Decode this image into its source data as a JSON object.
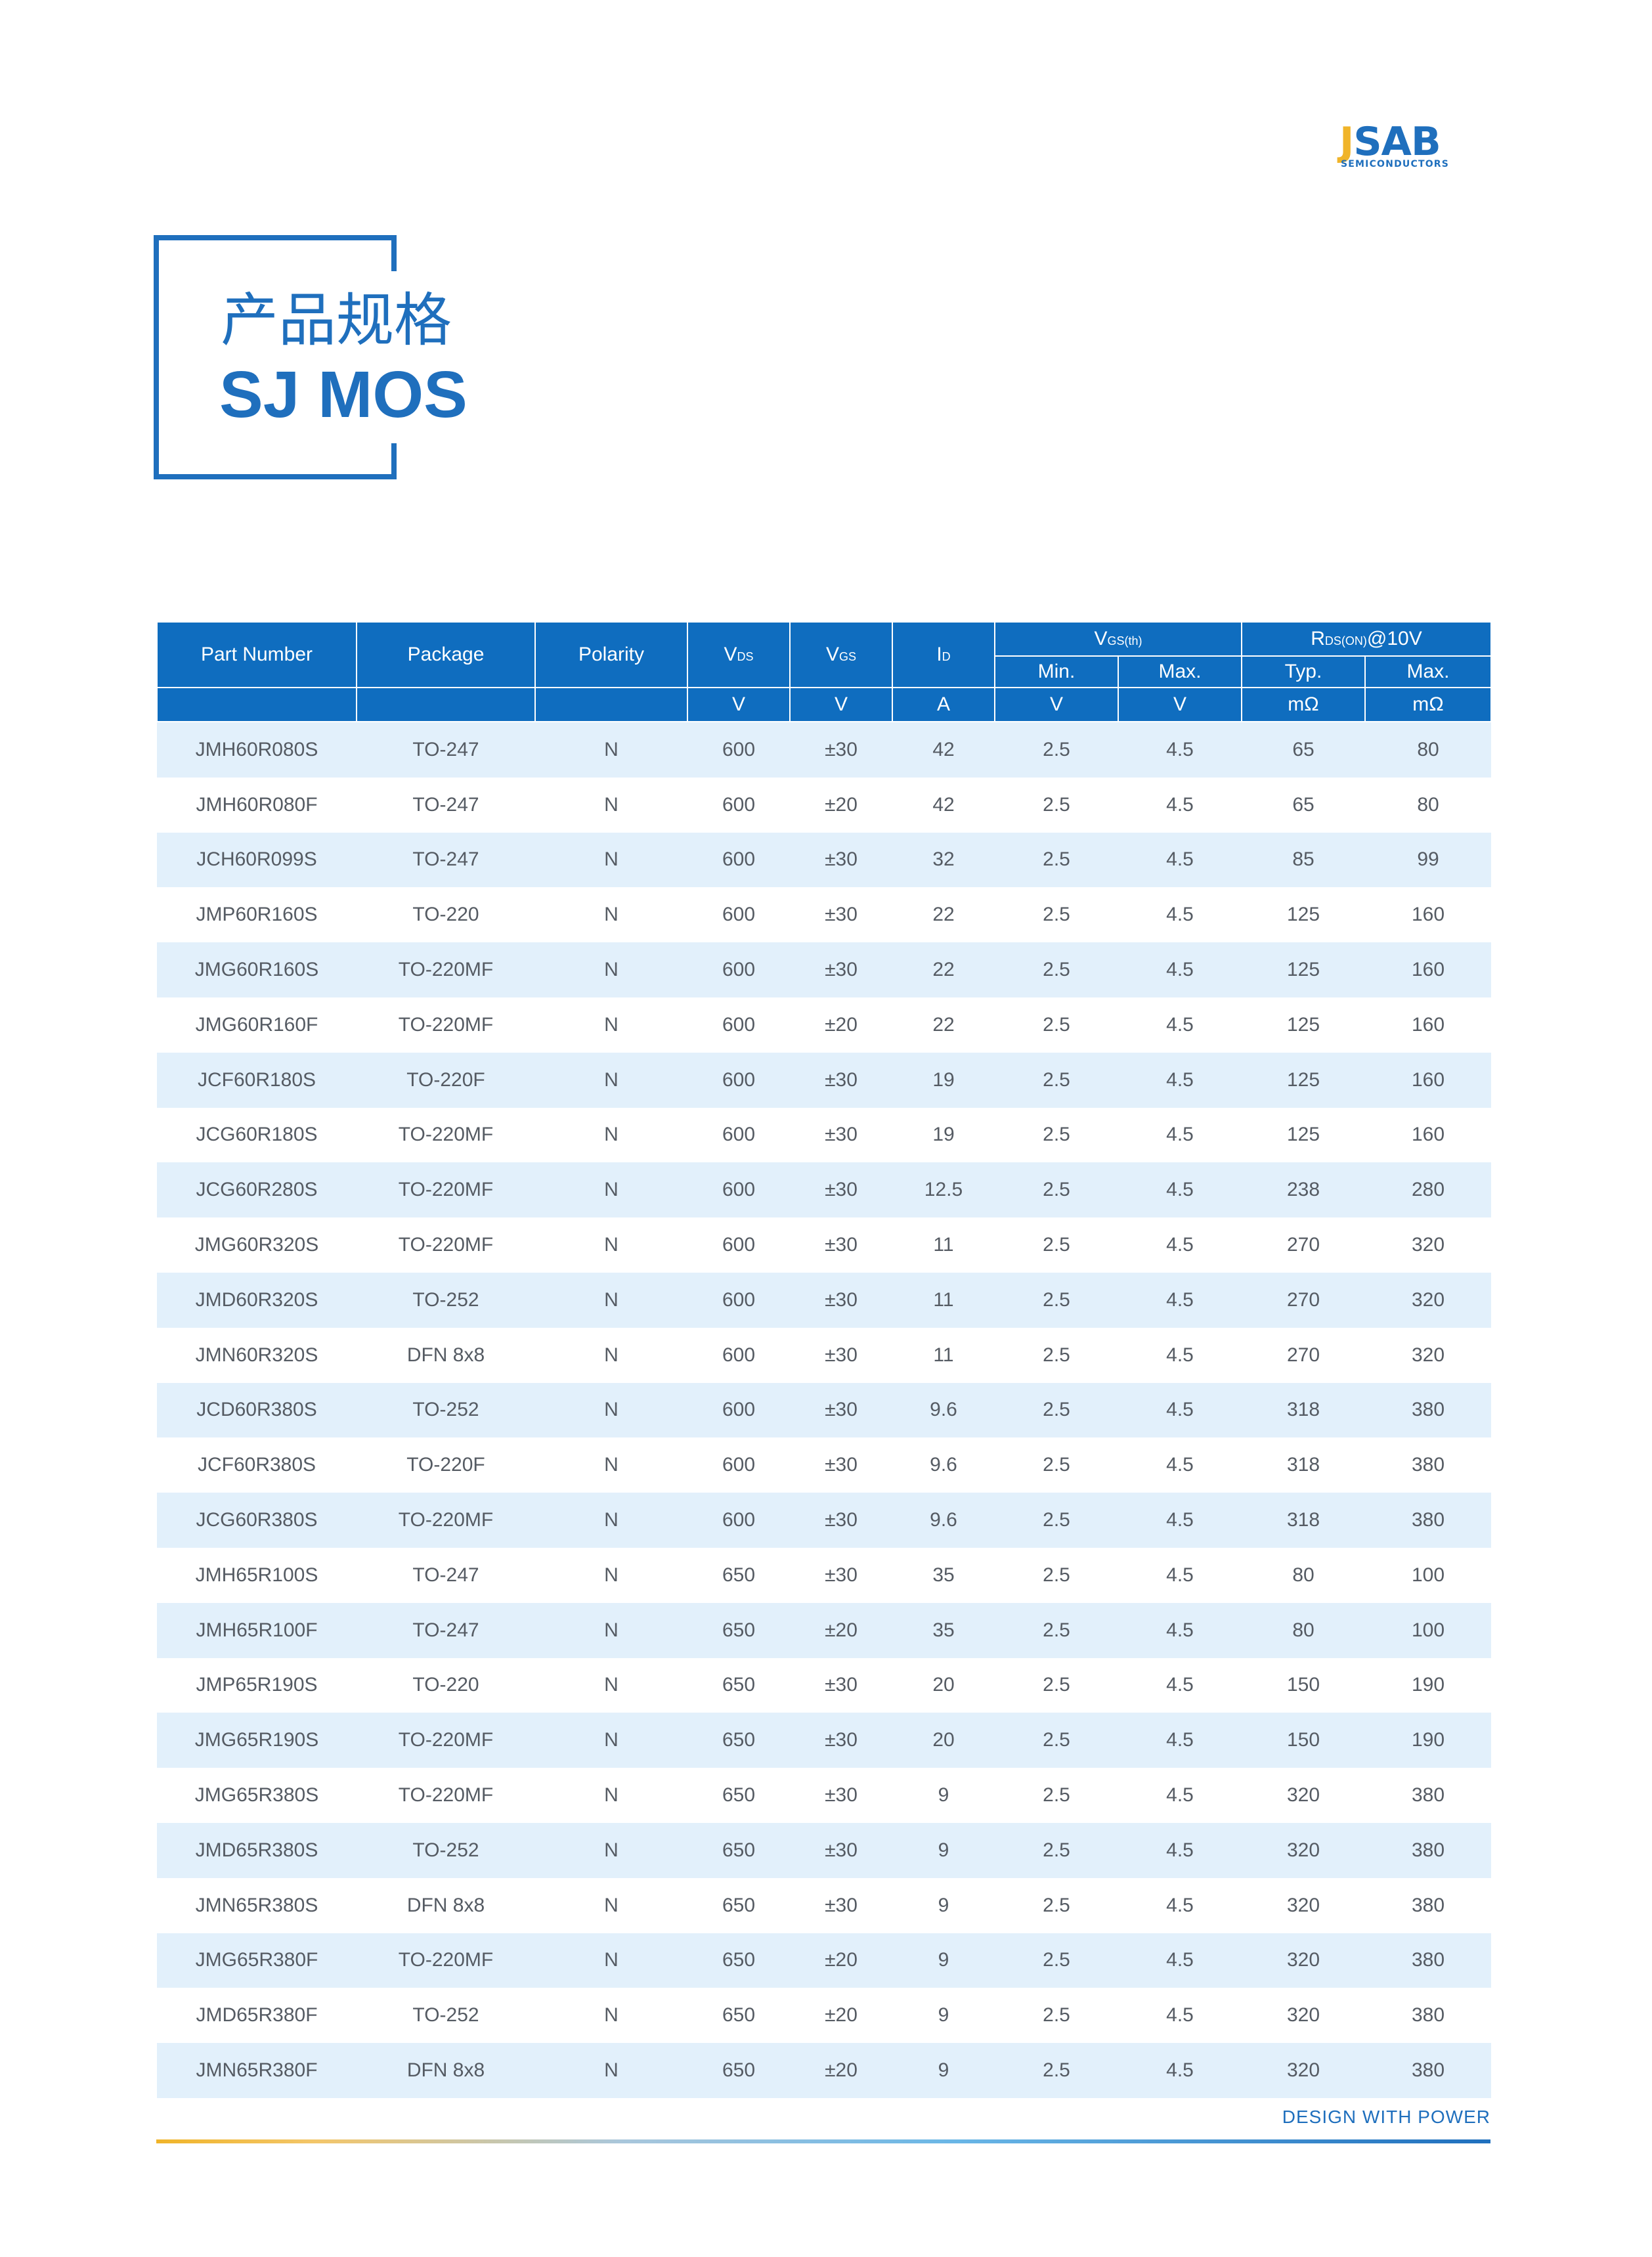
{
  "logo": {
    "word_first": "J",
    "word_rest": "SAB",
    "subtitle": "SEMICONDUCTORS"
  },
  "title": {
    "cn": "产品规格",
    "en": "SJ MOS"
  },
  "table": {
    "headers": {
      "part_number": "Part Number",
      "package": "Package",
      "polarity": "Polarity",
      "vds": {
        "sym": "V",
        "sub": "DS"
      },
      "vgs": {
        "sym": "V",
        "sub": "GS"
      },
      "id": {
        "sym": "I",
        "sub": "D"
      },
      "vgs_th": {
        "sym": "V",
        "sub": "GS(th)"
      },
      "rds_on": {
        "sym": "R",
        "sub": "DS(ON)",
        "suffix": "@10V"
      },
      "min": "Min.",
      "max": "Max.",
      "typ": "Typ.",
      "max2": "Max."
    },
    "units": {
      "vds": "V",
      "vgs": "V",
      "id": "A",
      "vth_min": "V",
      "vth_max": "V",
      "rds_typ": "mΩ",
      "rds_max": "mΩ"
    },
    "rows": [
      [
        "JMH60R080S",
        "TO-247",
        "N",
        "600",
        "±30",
        "42",
        "2.5",
        "4.5",
        "65",
        "80"
      ],
      [
        "JMH60R080F",
        "TO-247",
        "N",
        "600",
        "±20",
        "42",
        "2.5",
        "4.5",
        "65",
        "80"
      ],
      [
        "JCH60R099S",
        "TO-247",
        "N",
        "600",
        "±30",
        "32",
        "2.5",
        "4.5",
        "85",
        "99"
      ],
      [
        "JMP60R160S",
        "TO-220",
        "N",
        "600",
        "±30",
        "22",
        "2.5",
        "4.5",
        "125",
        "160"
      ],
      [
        "JMG60R160S",
        "TO-220MF",
        "N",
        "600",
        "±30",
        "22",
        "2.5",
        "4.5",
        "125",
        "160"
      ],
      [
        "JMG60R160F",
        "TO-220MF",
        "N",
        "600",
        "±20",
        "22",
        "2.5",
        "4.5",
        "125",
        "160"
      ],
      [
        "JCF60R180S",
        "TO-220F",
        "N",
        "600",
        "±30",
        "19",
        "2.5",
        "4.5",
        "125",
        "160"
      ],
      [
        "JCG60R180S",
        "TO-220MF",
        "N",
        "600",
        "±30",
        "19",
        "2.5",
        "4.5",
        "125",
        "160"
      ],
      [
        "JCG60R280S",
        "TO-220MF",
        "N",
        "600",
        "±30",
        "12.5",
        "2.5",
        "4.5",
        "238",
        "280"
      ],
      [
        "JMG60R320S",
        "TO-220MF",
        "N",
        "600",
        "±30",
        "11",
        "2.5",
        "4.5",
        "270",
        "320"
      ],
      [
        "JMD60R320S",
        "TO-252",
        "N",
        "600",
        "±30",
        "11",
        "2.5",
        "4.5",
        "270",
        "320"
      ],
      [
        "JMN60R320S",
        "DFN 8x8",
        "N",
        "600",
        "±30",
        "11",
        "2.5",
        "4.5",
        "270",
        "320"
      ],
      [
        "JCD60R380S",
        "TO-252",
        "N",
        "600",
        "±30",
        "9.6",
        "2.5",
        "4.5",
        "318",
        "380"
      ],
      [
        "JCF60R380S",
        "TO-220F",
        "N",
        "600",
        "±30",
        "9.6",
        "2.5",
        "4.5",
        "318",
        "380"
      ],
      [
        "JCG60R380S",
        "TO-220MF",
        "N",
        "600",
        "±30",
        "9.6",
        "2.5",
        "4.5",
        "318",
        "380"
      ],
      [
        "JMH65R100S",
        "TO-247",
        "N",
        "650",
        "±30",
        "35",
        "2.5",
        "4.5",
        "80",
        "100"
      ],
      [
        "JMH65R100F",
        "TO-247",
        "N",
        "650",
        "±20",
        "35",
        "2.5",
        "4.5",
        "80",
        "100"
      ],
      [
        "JMP65R190S",
        "TO-220",
        "N",
        "650",
        "±30",
        "20",
        "2.5",
        "4.5",
        "150",
        "190"
      ],
      [
        "JMG65R190S",
        "TO-220MF",
        "N",
        "650",
        "±30",
        "20",
        "2.5",
        "4.5",
        "150",
        "190"
      ],
      [
        "JMG65R380S",
        "TO-220MF",
        "N",
        "650",
        "±30",
        "9",
        "2.5",
        "4.5",
        "320",
        "380"
      ],
      [
        "JMD65R380S",
        "TO-252",
        "N",
        "650",
        "±30",
        "9",
        "2.5",
        "4.5",
        "320",
        "380"
      ],
      [
        "JMN65R380S",
        "DFN 8x8",
        "N",
        "650",
        "±30",
        "9",
        "2.5",
        "4.5",
        "320",
        "380"
      ],
      [
        "JMG65R380F",
        "TO-220MF",
        "N",
        "650",
        "±20",
        "9",
        "2.5",
        "4.5",
        "320",
        "380"
      ],
      [
        "JMD65R380F",
        "TO-252",
        "N",
        "650",
        "±20",
        "9",
        "2.5",
        "4.5",
        "320",
        "380"
      ],
      [
        "JMN65R380F",
        "DFN 8x8",
        "N",
        "650",
        "±20",
        "9",
        "2.5",
        "4.5",
        "320",
        "380"
      ]
    ]
  },
  "footer": {
    "tagline": "DESIGN WITH POWER"
  },
  "colors": {
    "brand_blue": "#1f6fbd",
    "header_blue": "#0f6dbf",
    "logo_yellow": "#f0b429",
    "row_stripe": "#e2f0fb"
  }
}
